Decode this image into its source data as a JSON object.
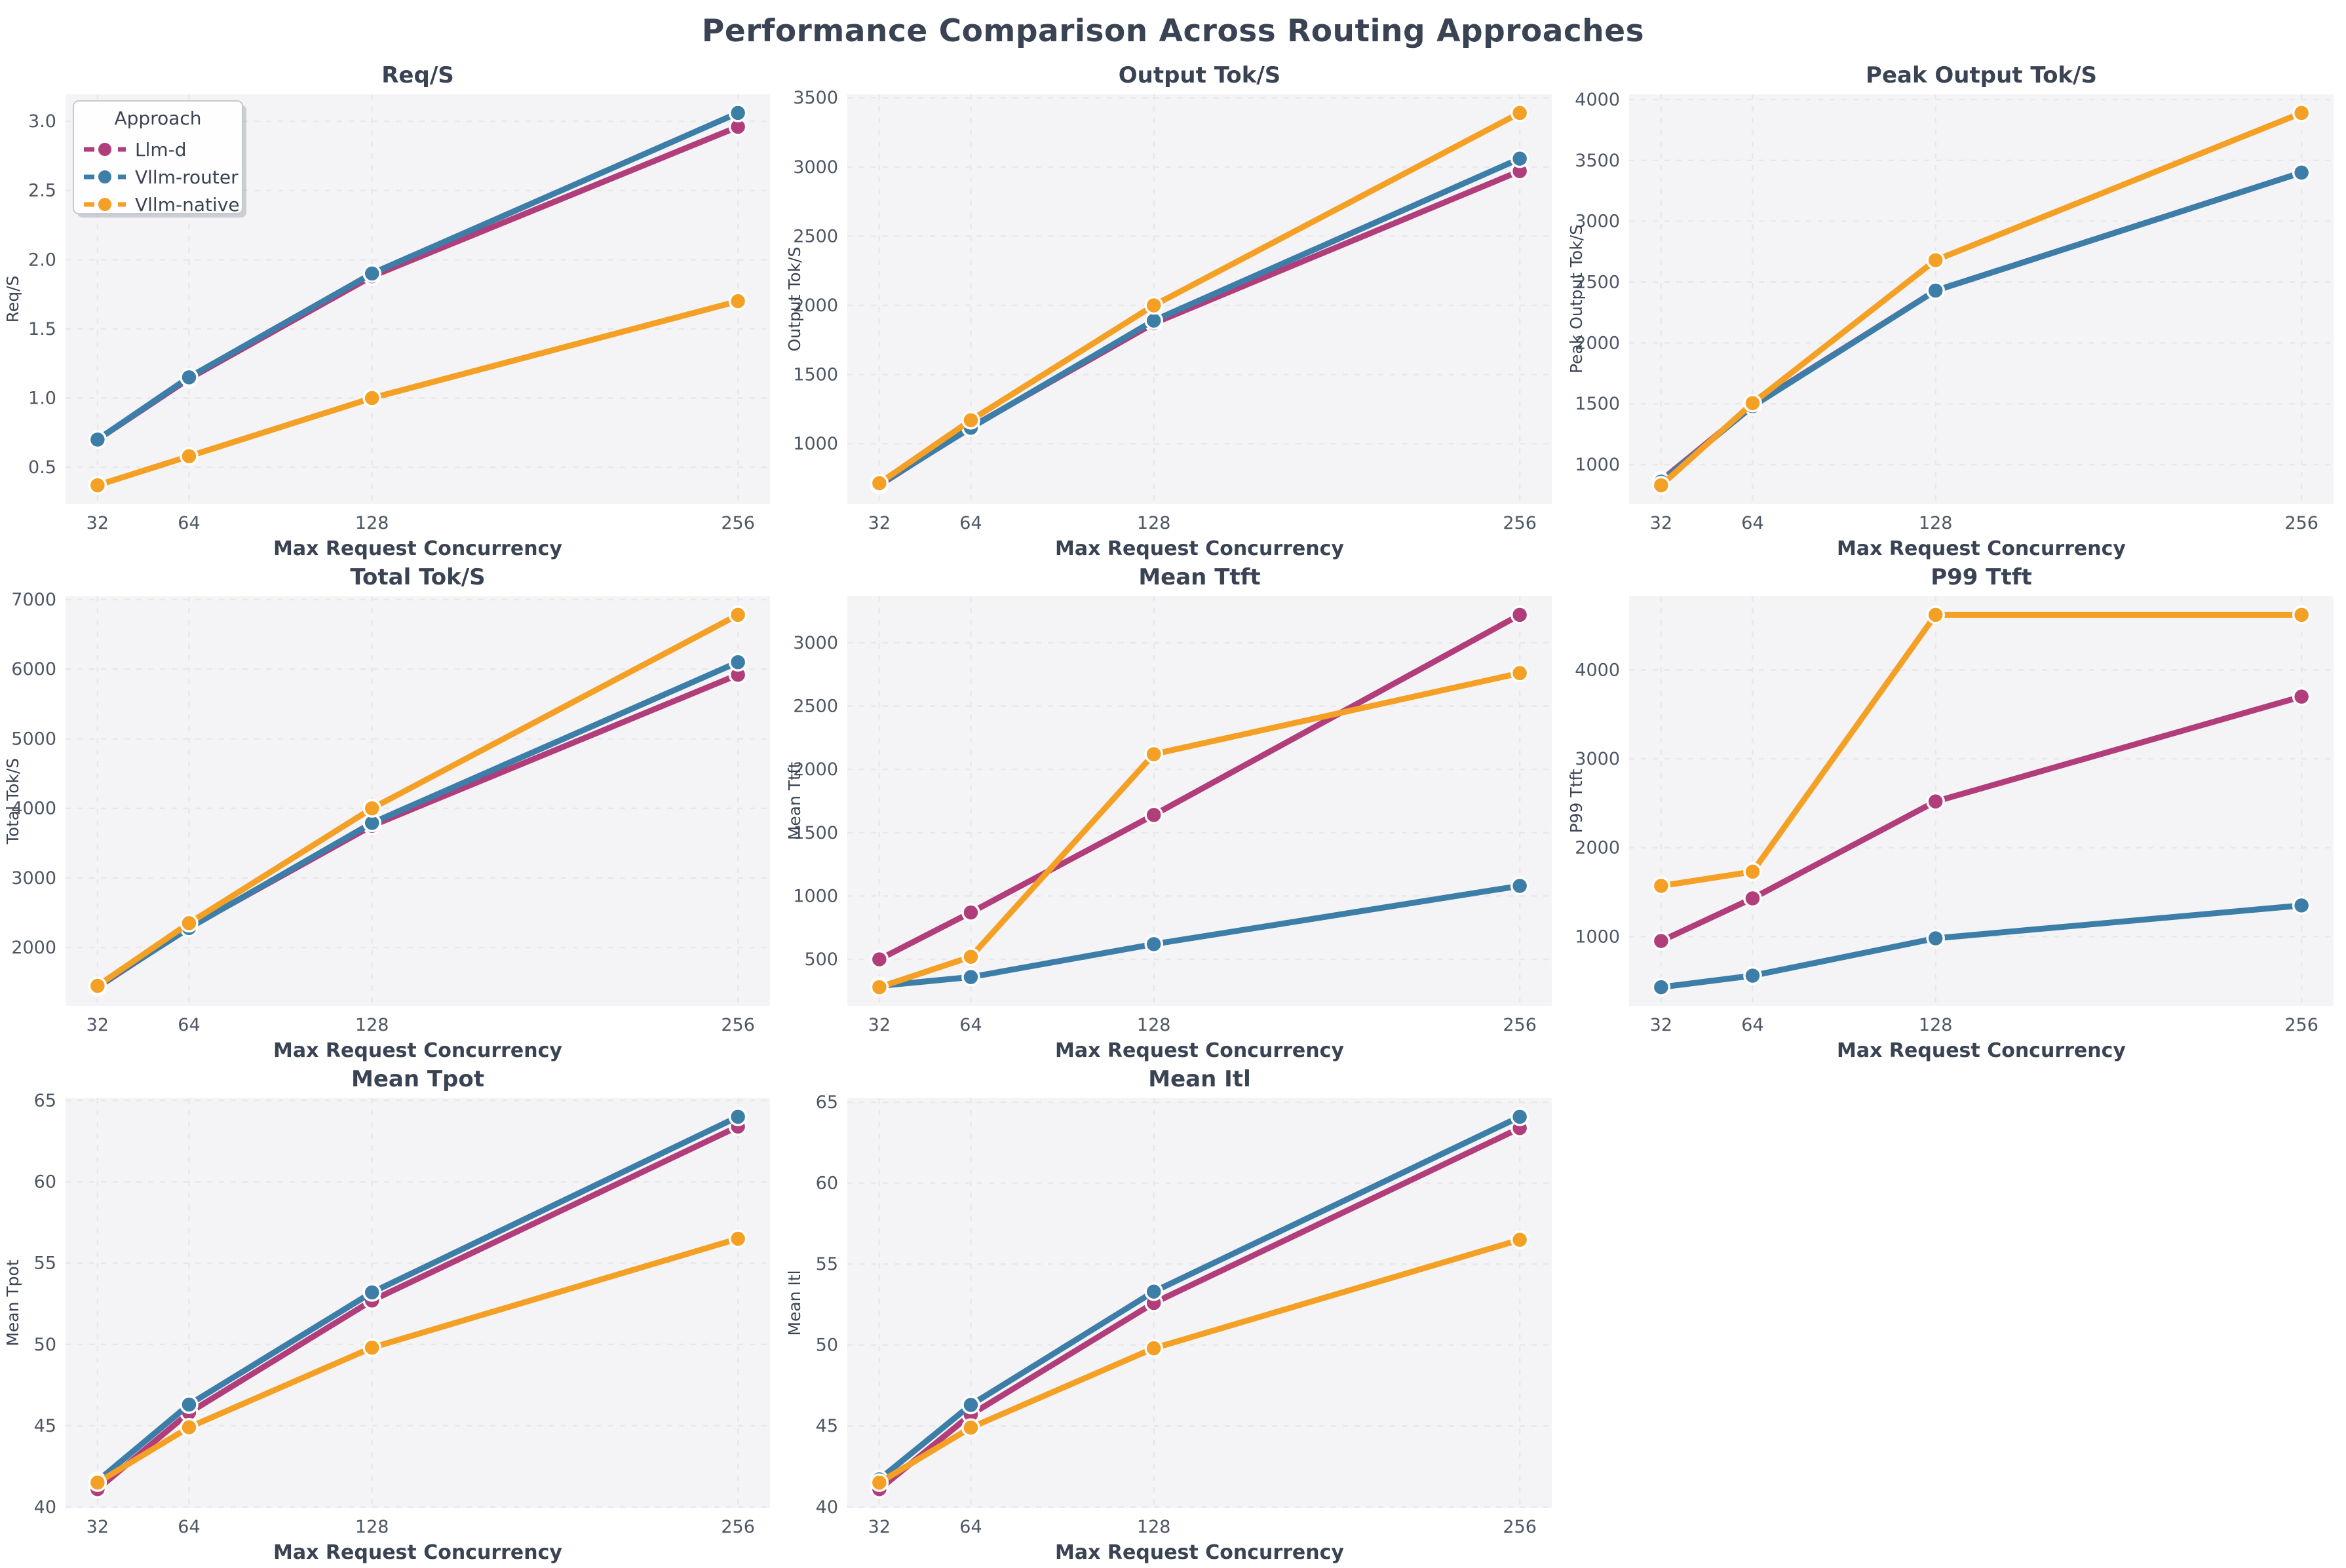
{
  "page_title": "Performance Comparison Across Routing Approaches",
  "chart_data": {
    "type": "line",
    "x_label": "Max Request Concurrency",
    "x_ticks": [
      32,
      64,
      128,
      256
    ],
    "x_tick_labels": [
      "32",
      "64",
      "128",
      "256"
    ],
    "legend": {
      "title": "Approach",
      "position": "upper-left",
      "series": [
        {
          "key": "llm_d",
          "label": "Llm-d",
          "color": "#b13d7b"
        },
        {
          "key": "vllm_router",
          "label": "Vllm-router",
          "color": "#3c7ea8"
        },
        {
          "key": "vllm_native",
          "label": "Vllm-native",
          "color": "#f4a025"
        }
      ]
    },
    "style": {
      "plot_background": "#f4f4f6",
      "grid_color": "#e7e7ec",
      "title_color": "#3a4353",
      "tick_color": "#4d5663",
      "label_color": "#3a4353",
      "grid_dashed": true
    },
    "charts": [
      {
        "title": "Req/S",
        "ylabel": "Req/S",
        "show_legend": true,
        "yticks": [
          0.5,
          1.0,
          1.5,
          2.0,
          2.5,
          3.0
        ],
        "ytick_labels": [
          "0.5",
          "1.0",
          "1.5",
          "2.0",
          "2.5",
          "3.0"
        ],
        "series": {
          "llm_d": [
            0.7,
            1.14,
            1.88,
            2.96
          ],
          "vllm_router": [
            0.7,
            1.15,
            1.9,
            3.06
          ],
          "vllm_native": [
            0.37,
            0.58,
            1.0,
            1.7
          ]
        }
      },
      {
        "title": "Output Tok/S",
        "ylabel": "Output Tok/S",
        "show_legend": false,
        "yticks": [
          1000,
          1500,
          2000,
          2500,
          3000,
          3500
        ],
        "ytick_labels": [
          "1000",
          "1500",
          "2000",
          "2500",
          "3000",
          "3500"
        ],
        "series": {
          "llm_d": [
            700,
            1120,
            1870,
            2970
          ],
          "vllm_router": [
            705,
            1115,
            1890,
            3060
          ],
          "vllm_native": [
            715,
            1170,
            2000,
            3390
          ]
        }
      },
      {
        "title": "Peak Output Tok/S",
        "ylabel": "Peak Output Tok/S",
        "show_legend": false,
        "yticks": [
          1000,
          1500,
          2000,
          2500,
          3000,
          3500,
          4000
        ],
        "ytick_labels": [
          "1000",
          "1500",
          "2000",
          "2500",
          "3000",
          "3500",
          "4000"
        ],
        "series": {
          "llm_d": [
            870,
            1485,
            2430,
            3400
          ],
          "vllm_router": [
            860,
            1480,
            2430,
            3400
          ],
          "vllm_native": [
            830,
            1505,
            2680,
            3890
          ]
        }
      },
      {
        "title": "Total Tok/S",
        "ylabel": "Total Tok/S",
        "show_legend": false,
        "yticks": [
          2000,
          3000,
          4000,
          5000,
          6000,
          7000
        ],
        "ytick_labels": [
          "2000",
          "3000",
          "4000",
          "5000",
          "6000",
          "7000"
        ],
        "series": {
          "llm_d": [
            1430,
            2290,
            3750,
            5920
          ],
          "vllm_router": [
            1440,
            2280,
            3790,
            6100
          ],
          "vllm_native": [
            1450,
            2350,
            4000,
            6780
          ]
        }
      },
      {
        "title": "Mean Ttft",
        "ylabel": "Mean Ttft",
        "show_legend": false,
        "yticks": [
          500,
          1000,
          1500,
          2000,
          2500,
          3000
        ],
        "ytick_labels": [
          "500",
          "1000",
          "1500",
          "2000",
          "2500",
          "3000"
        ],
        "series": {
          "llm_d": [
            500,
            870,
            1640,
            3220
          ],
          "vllm_router": [
            290,
            360,
            620,
            1080
          ],
          "vllm_native": [
            280,
            520,
            2120,
            2760
          ]
        }
      },
      {
        "title": "P99 Ttft",
        "ylabel": "P99 Ttft",
        "show_legend": false,
        "yticks": [
          1000,
          2000,
          3000,
          4000
        ],
        "ytick_labels": [
          "1000",
          "2000",
          "3000",
          "4000"
        ],
        "series": {
          "llm_d": [
            950,
            1430,
            2520,
            3700
          ],
          "vllm_router": [
            430,
            560,
            980,
            1350
          ],
          "vllm_native": [
            1570,
            1730,
            4620,
            4620
          ]
        }
      },
      {
        "title": "Mean Tpot",
        "ylabel": "Mean Tpot",
        "show_legend": false,
        "yticks": [
          40,
          45,
          50,
          55,
          60,
          65
        ],
        "ytick_labels": [
          "40",
          "45",
          "50",
          "55",
          "60",
          "65"
        ],
        "series": {
          "llm_d": [
            41.1,
            45.8,
            52.7,
            63.4
          ],
          "vllm_router": [
            41.6,
            46.3,
            53.2,
            64.0
          ],
          "vllm_native": [
            41.5,
            44.9,
            49.8,
            56.5
          ]
        }
      },
      {
        "title": "Mean Itl",
        "ylabel": "Mean Itl",
        "show_legend": false,
        "yticks": [
          40,
          45,
          50,
          55,
          60,
          65
        ],
        "ytick_labels": [
          "40",
          "45",
          "50",
          "55",
          "60",
          "65"
        ],
        "series": {
          "llm_d": [
            41.1,
            45.7,
            52.6,
            63.4
          ],
          "vllm_router": [
            41.7,
            46.3,
            53.3,
            64.1
          ],
          "vllm_native": [
            41.5,
            44.9,
            49.8,
            56.5
          ]
        }
      }
    ]
  }
}
